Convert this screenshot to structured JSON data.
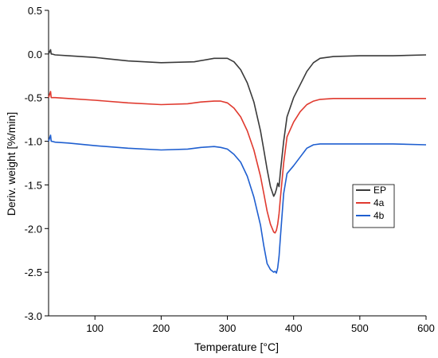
{
  "chart_data": {
    "type": "line",
    "xlabel": "Temperature [°C]",
    "ylabel": "Deriv. weight [%/min]",
    "xlim": [
      30,
      600
    ],
    "ylim": [
      -3.0,
      0.5
    ],
    "x_ticks": [
      100,
      200,
      300,
      400,
      500,
      600
    ],
    "x_tick_labels": [
      "100",
      "200",
      "300",
      "400",
      "500",
      "600"
    ],
    "y_ticks": [
      0.5,
      0.0,
      -0.5,
      -1.0,
      -1.5,
      -2.0,
      -2.5,
      -3.0
    ],
    "y_tick_labels": [
      "0.5",
      "0.0",
      "-0.5",
      "-1.0",
      "-1.5",
      "-2.0",
      "-2.5",
      "-3.0"
    ],
    "grid": false,
    "legend_position": "right",
    "series": [
      {
        "name": "EP",
        "color": "#3a3a3a",
        "x": [
          30,
          33,
          34,
          35,
          40,
          60,
          100,
          150,
          200,
          250,
          280,
          300,
          310,
          320,
          330,
          340,
          350,
          355,
          360,
          365,
          370,
          372,
          374,
          376,
          378,
          380,
          385,
          390,
          400,
          410,
          420,
          430,
          440,
          460,
          500,
          550,
          600
        ],
        "y": [
          0.0,
          0.05,
          0.0,
          0.0,
          -0.01,
          -0.02,
          -0.04,
          -0.08,
          -0.1,
          -0.09,
          -0.05,
          -0.05,
          -0.09,
          -0.18,
          -0.33,
          -0.55,
          -0.88,
          -1.1,
          -1.32,
          -1.52,
          -1.63,
          -1.6,
          -1.55,
          -1.48,
          -1.52,
          -1.35,
          -1.0,
          -0.72,
          -0.5,
          -0.35,
          -0.2,
          -0.1,
          -0.05,
          -0.03,
          -0.02,
          -0.02,
          -0.01
        ]
      },
      {
        "name": "4a",
        "color": "#e03a2f",
        "x": [
          30,
          33,
          34,
          35,
          40,
          60,
          100,
          150,
          200,
          240,
          260,
          280,
          290,
          300,
          310,
          320,
          330,
          340,
          350,
          355,
          360,
          365,
          370,
          372,
          374,
          376,
          378,
          380,
          385,
          390,
          400,
          410,
          420,
          430,
          440,
          460,
          500,
          550,
          600
        ],
        "y": [
          -0.5,
          -0.43,
          -0.5,
          -0.5,
          -0.5,
          -0.51,
          -0.53,
          -0.56,
          -0.58,
          -0.57,
          -0.55,
          -0.54,
          -0.54,
          -0.56,
          -0.62,
          -0.72,
          -0.88,
          -1.1,
          -1.4,
          -1.6,
          -1.8,
          -1.95,
          -2.04,
          -2.05,
          -2.02,
          -1.95,
          -1.83,
          -1.65,
          -1.25,
          -0.95,
          -0.78,
          -0.66,
          -0.58,
          -0.54,
          -0.52,
          -0.51,
          -0.51,
          -0.51,
          -0.51
        ]
      },
      {
        "name": "4b",
        "color": "#1f5fd0",
        "x": [
          30,
          33,
          34,
          35,
          40,
          60,
          100,
          150,
          200,
          240,
          260,
          280,
          290,
          300,
          310,
          320,
          330,
          340,
          350,
          355,
          360,
          365,
          370,
          372,
          374,
          376,
          378,
          380,
          385,
          390,
          400,
          410,
          420,
          430,
          440,
          460,
          500,
          550,
          600
        ],
        "y": [
          -1.0,
          -0.93,
          -1.0,
          -1.0,
          -1.01,
          -1.02,
          -1.05,
          -1.08,
          -1.1,
          -1.09,
          -1.07,
          -1.06,
          -1.07,
          -1.09,
          -1.15,
          -1.24,
          -1.4,
          -1.64,
          -1.96,
          -2.2,
          -2.4,
          -2.47,
          -2.5,
          -2.49,
          -2.51,
          -2.45,
          -2.32,
          -2.1,
          -1.6,
          -1.37,
          -1.28,
          -1.18,
          -1.08,
          -1.04,
          -1.03,
          -1.03,
          -1.03,
          -1.03,
          -1.04
        ]
      }
    ]
  }
}
